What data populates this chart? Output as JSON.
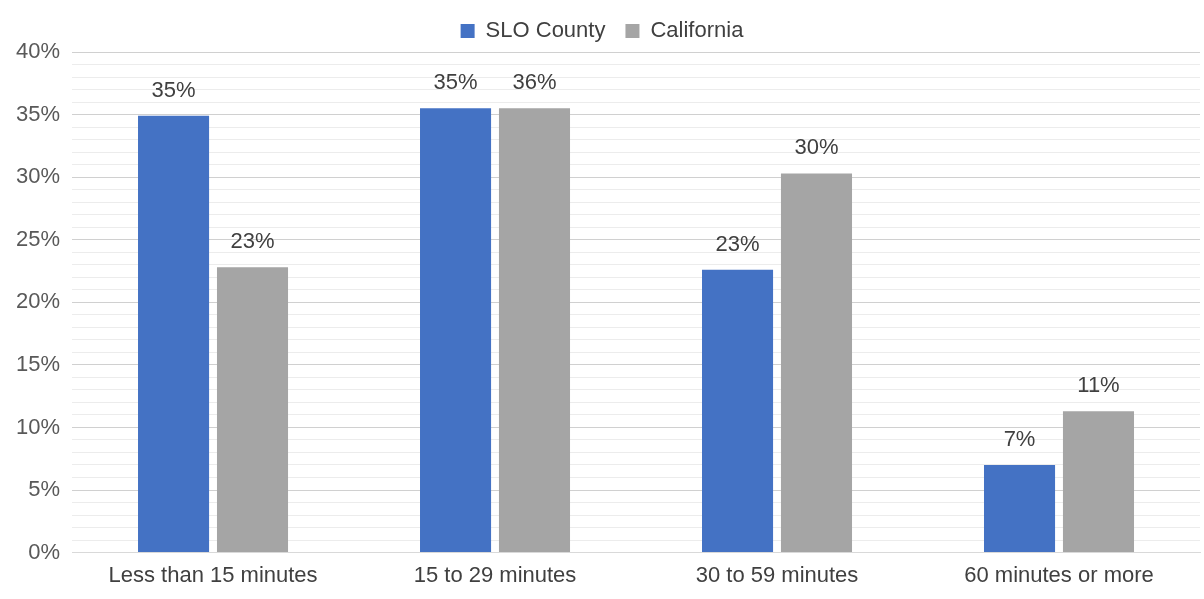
{
  "chart_data": {
    "type": "bar",
    "categories": [
      "Less than 15 minutes",
      "15 to 29 minutes",
      "30 to 59 minutes",
      "60 minutes or more"
    ],
    "series": [
      {
        "name": "SLO County",
        "color": "#4472c4",
        "values": [
          34.9,
          35.5,
          22.6,
          7.0
        ],
        "value_labels": [
          "35%",
          "35%",
          "23%",
          "7%"
        ]
      },
      {
        "name": "California",
        "color": "#a5a5a5",
        "values": [
          22.8,
          35.5,
          30.3,
          11.3
        ],
        "value_labels": [
          "23%",
          "36%",
          "30%",
          "11%"
        ]
      }
    ],
    "ylim": [
      0,
      40
    ],
    "yticks": [
      {
        "value": 0,
        "label": "0%"
      },
      {
        "value": 1,
        "label": null
      },
      {
        "value": 2,
        "label": null
      },
      {
        "value": 3,
        "label": null
      },
      {
        "value": 4,
        "label": null
      },
      {
        "value": 5,
        "label": "5%"
      },
      {
        "value": 6,
        "label": null
      },
      {
        "value": 7,
        "label": null
      },
      {
        "value": 8,
        "label": null
      },
      {
        "value": 9,
        "label": null
      },
      {
        "value": 10,
        "label": "10%"
      },
      {
        "value": 11,
        "label": null
      },
      {
        "value": 12,
        "label": null
      },
      {
        "value": 13,
        "label": null
      },
      {
        "value": 14,
        "label": null
      },
      {
        "value": 15,
        "label": "15%"
      },
      {
        "value": 16,
        "label": null
      },
      {
        "value": 17,
        "label": null
      },
      {
        "value": 18,
        "label": null
      },
      {
        "value": 19,
        "label": null
      },
      {
        "value": 20,
        "label": "20%"
      },
      {
        "value": 21,
        "label": null
      },
      {
        "value": 22,
        "label": null
      },
      {
        "value": 23,
        "label": null
      },
      {
        "value": 24,
        "label": null
      },
      {
        "value": 25,
        "label": "25%"
      },
      {
        "value": 26,
        "label": null
      },
      {
        "value": 27,
        "label": null
      },
      {
        "value": 28,
        "label": null
      },
      {
        "value": 29,
        "label": null
      },
      {
        "value": 30,
        "label": "30%"
      },
      {
        "value": 31,
        "label": null
      },
      {
        "value": 32,
        "label": null
      },
      {
        "value": 33,
        "label": null
      },
      {
        "value": 34,
        "label": null
      },
      {
        "value": 35,
        "label": "35%"
      },
      {
        "value": 36,
        "label": null
      },
      {
        "value": 37,
        "label": null
      },
      {
        "value": 38,
        "label": null
      },
      {
        "value": 39,
        "label": null
      },
      {
        "value": 40,
        "label": "40%"
      }
    ],
    "grid": "y",
    "legend": "top"
  }
}
